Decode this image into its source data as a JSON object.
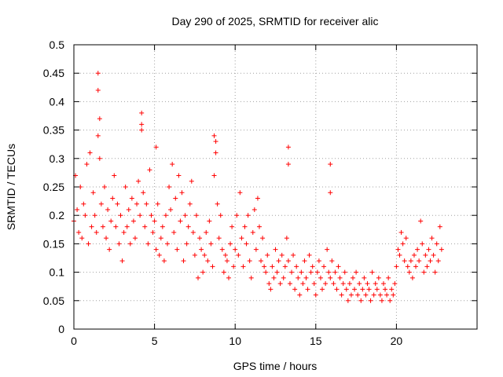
{
  "chart_data": {
    "type": "scatter",
    "title": "Day 290 of 2025, SRMTID for receiver alic",
    "xlabel": "GPS time / hours",
    "ylabel": "SRMTID / TECUs",
    "xlim": [
      0,
      25
    ],
    "ylim": [
      0,
      0.5
    ],
    "xticks": [
      0,
      5,
      10,
      15,
      20
    ],
    "xtick_labels": [
      "0",
      "5",
      "10",
      "15",
      "20"
    ],
    "yticks": [
      0,
      0.05,
      0.1,
      0.15,
      0.2,
      0.25,
      0.3,
      0.35,
      0.4,
      0.45,
      0.5
    ],
    "ytick_labels": [
      "0",
      "0.05",
      "0.1",
      "0.15",
      "0.2",
      "0.25",
      "0.3",
      "0.35",
      "0.4",
      "0.45",
      "0.5"
    ],
    "grid": true,
    "marker": "+",
    "marker_color": "#ff0000",
    "series": [
      {
        "name": "SRMTID",
        "color": "#ff0000",
        "x": [
          0.0,
          0.1,
          0.2,
          0.3,
          0.4,
          0.5,
          0.6,
          0.7,
          0.8,
          0.9,
          1.0,
          1.1,
          1.2,
          1.3,
          1.4,
          1.5,
          1.6,
          1.7,
          1.8,
          1.9,
          2.0,
          2.1,
          2.2,
          2.3,
          2.4,
          2.5,
          2.6,
          2.7,
          2.8,
          2.9,
          3.0,
          3.1,
          3.2,
          3.3,
          3.4,
          3.5,
          3.6,
          3.7,
          3.8,
          3.9,
          4.0,
          4.1,
          4.2,
          4.3,
          4.4,
          4.5,
          4.6,
          4.7,
          4.8,
          4.9,
          5.0,
          5.1,
          5.2,
          5.3,
          5.4,
          5.5,
          5.6,
          5.7,
          5.8,
          5.9,
          6.0,
          6.1,
          6.2,
          6.3,
          6.4,
          6.5,
          6.6,
          6.7,
          6.8,
          6.9,
          7.0,
          7.1,
          7.2,
          7.3,
          7.4,
          7.5,
          7.6,
          7.7,
          7.8,
          7.9,
          8.0,
          8.1,
          8.2,
          8.3,
          8.4,
          8.5,
          8.6,
          8.7,
          8.8,
          8.9,
          9.0,
          9.1,
          9.2,
          9.3,
          9.4,
          9.5,
          9.6,
          9.7,
          9.8,
          9.9,
          10.0,
          10.1,
          10.2,
          10.3,
          10.4,
          10.5,
          10.6,
          10.7,
          10.8,
          10.9,
          11.0,
          11.1,
          11.2,
          11.3,
          11.4,
          11.5,
          11.6,
          11.7,
          11.8,
          11.9,
          12.0,
          12.1,
          12.2,
          12.3,
          12.4,
          12.5,
          12.6,
          12.7,
          12.8,
          12.9,
          13.0,
          13.1,
          13.2,
          13.3,
          13.4,
          13.5,
          13.6,
          13.7,
          13.8,
          13.9,
          14.0,
          14.1,
          14.2,
          14.3,
          14.4,
          14.5,
          14.6,
          14.7,
          14.8,
          14.9,
          15.0,
          15.1,
          15.2,
          15.3,
          15.4,
          15.5,
          15.6,
          15.7,
          15.8,
          15.9,
          16.0,
          16.1,
          16.2,
          16.3,
          16.4,
          16.5,
          16.6,
          16.7,
          16.8,
          16.9,
          17.0,
          17.1,
          17.2,
          17.3,
          17.4,
          17.5,
          17.6,
          17.7,
          17.8,
          17.9,
          18.0,
          18.1,
          18.2,
          18.3,
          18.4,
          18.5,
          18.6,
          18.7,
          18.8,
          18.9,
          19.0,
          19.1,
          19.2,
          19.3,
          19.4,
          19.5,
          19.6,
          19.7,
          19.8,
          19.9,
          20.0,
          20.1,
          20.2,
          20.3,
          20.4,
          20.5,
          20.6,
          20.7,
          20.8,
          20.9,
          21.0,
          21.1,
          21.2,
          21.3,
          21.4,
          21.5,
          21.6,
          21.7,
          21.8,
          21.9,
          22.0,
          22.1,
          22.2,
          22.3,
          22.4,
          22.5,
          22.6,
          22.7,
          22.8,
          1.5,
          1.5,
          1.6,
          4.2,
          4.2,
          5.1,
          13.3,
          13.3,
          15.9,
          15.9,
          8.7,
          8.8
        ],
        "y": [
          0.19,
          0.27,
          0.21,
          0.17,
          0.25,
          0.16,
          0.22,
          0.2,
          0.29,
          0.15,
          0.31,
          0.18,
          0.24,
          0.2,
          0.17,
          0.34,
          0.3,
          0.22,
          0.18,
          0.25,
          0.16,
          0.21,
          0.14,
          0.19,
          0.23,
          0.27,
          0.18,
          0.22,
          0.15,
          0.2,
          0.12,
          0.17,
          0.25,
          0.18,
          0.21,
          0.15,
          0.23,
          0.19,
          0.16,
          0.22,
          0.26,
          0.2,
          0.35,
          0.24,
          0.18,
          0.22,
          0.15,
          0.28,
          0.2,
          0.17,
          0.19,
          0.14,
          0.22,
          0.13,
          0.16,
          0.18,
          0.12,
          0.2,
          0.15,
          0.25,
          0.21,
          0.29,
          0.17,
          0.23,
          0.14,
          0.27,
          0.19,
          0.24,
          0.12,
          0.2,
          0.15,
          0.18,
          0.22,
          0.26,
          0.17,
          0.13,
          0.2,
          0.09,
          0.16,
          0.14,
          0.1,
          0.13,
          0.17,
          0.12,
          0.19,
          0.15,
          0.11,
          0.27,
          0.31,
          0.22,
          0.16,
          0.2,
          0.14,
          0.1,
          0.13,
          0.12,
          0.09,
          0.15,
          0.18,
          0.11,
          0.14,
          0.2,
          0.13,
          0.24,
          0.16,
          0.11,
          0.18,
          0.15,
          0.2,
          0.12,
          0.09,
          0.17,
          0.21,
          0.14,
          0.23,
          0.18,
          0.12,
          0.16,
          0.11,
          0.1,
          0.13,
          0.08,
          0.07,
          0.11,
          0.09,
          0.14,
          0.1,
          0.12,
          0.08,
          0.13,
          0.09,
          0.11,
          0.16,
          0.12,
          0.08,
          0.1,
          0.13,
          0.07,
          0.11,
          0.09,
          0.06,
          0.1,
          0.08,
          0.12,
          0.09,
          0.07,
          0.13,
          0.1,
          0.11,
          0.08,
          0.06,
          0.1,
          0.12,
          0.09,
          0.07,
          0.11,
          0.08,
          0.14,
          0.1,
          0.09,
          0.12,
          0.08,
          0.1,
          0.07,
          0.11,
          0.09,
          0.06,
          0.08,
          0.1,
          0.07,
          0.05,
          0.08,
          0.06,
          0.09,
          0.07,
          0.1,
          0.06,
          0.08,
          0.05,
          0.07,
          0.09,
          0.06,
          0.08,
          0.07,
          0.05,
          0.1,
          0.06,
          0.08,
          0.07,
          0.09,
          0.06,
          0.05,
          0.08,
          0.07,
          0.06,
          0.09,
          0.05,
          0.07,
          0.06,
          0.08,
          0.11,
          0.14,
          0.13,
          0.17,
          0.15,
          0.12,
          0.16,
          0.11,
          0.1,
          0.12,
          0.09,
          0.13,
          0.11,
          0.14,
          0.12,
          0.19,
          0.15,
          0.1,
          0.13,
          0.11,
          0.14,
          0.12,
          0.16,
          0.13,
          0.1,
          0.15,
          0.12,
          0.18,
          0.14,
          0.45,
          0.42,
          0.37,
          0.38,
          0.36,
          0.32,
          0.32,
          0.29,
          0.29,
          0.24,
          0.34,
          0.33
        ]
      }
    ]
  }
}
